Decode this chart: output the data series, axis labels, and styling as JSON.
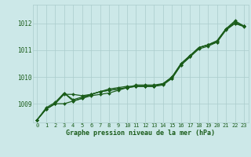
{
  "background_color": "#cce8e8",
  "grid_color": "#aacccc",
  "line_color": "#1a5c1a",
  "text_color": "#1a5c1a",
  "xlabel": "Graphe pression niveau de la mer (hPa)",
  "ylim": [
    1008.3,
    1012.7
  ],
  "xlim": [
    -0.5,
    23.5
  ],
  "yticks": [
    1009,
    1010,
    1011,
    1012
  ],
  "xticks": [
    0,
    1,
    2,
    3,
    4,
    5,
    6,
    7,
    8,
    9,
    10,
    11,
    12,
    13,
    14,
    15,
    16,
    17,
    18,
    19,
    20,
    21,
    22,
    23
  ],
  "series": [
    [
      1008.4,
      1008.8,
      1009.0,
      1009.4,
      1009.1,
      1009.2,
      1009.35,
      1009.45,
      1009.5,
      1009.55,
      1009.6,
      1009.65,
      1009.65,
      1009.65,
      1009.75,
      1010.0,
      1010.5,
      1010.8,
      1011.1,
      1011.2,
      1011.35,
      1011.8,
      1012.05,
      1011.9
    ],
    [
      1008.4,
      1008.85,
      1009.05,
      1009.4,
      1009.15,
      1009.25,
      1009.35,
      1009.45,
      1009.5,
      1009.55,
      1009.6,
      1009.65,
      1009.65,
      1009.65,
      1009.75,
      1009.95,
      1010.45,
      1010.75,
      1011.05,
      1011.15,
      1011.3,
      1011.75,
      1012.0,
      1011.88
    ],
    [
      1008.4,
      1008.8,
      1009.0,
      1009.35,
      1009.35,
      1009.3,
      1009.35,
      1009.45,
      1009.55,
      1009.6,
      1009.65,
      1009.65,
      1009.65,
      1009.65,
      1009.7,
      1009.95,
      1010.45,
      1010.75,
      1011.1,
      1011.2,
      1011.35,
      1011.8,
      1012.0,
      1011.9
    ],
    [
      1008.4,
      1008.8,
      1009.0,
      1009.0,
      1009.1,
      1009.2,
      1009.3,
      1009.35,
      1009.4,
      1009.5,
      1009.6,
      1009.7,
      1009.7,
      1009.7,
      1009.75,
      1010.0,
      1010.5,
      1010.8,
      1011.1,
      1011.2,
      1011.3,
      1011.8,
      1012.1,
      1011.9
    ]
  ]
}
